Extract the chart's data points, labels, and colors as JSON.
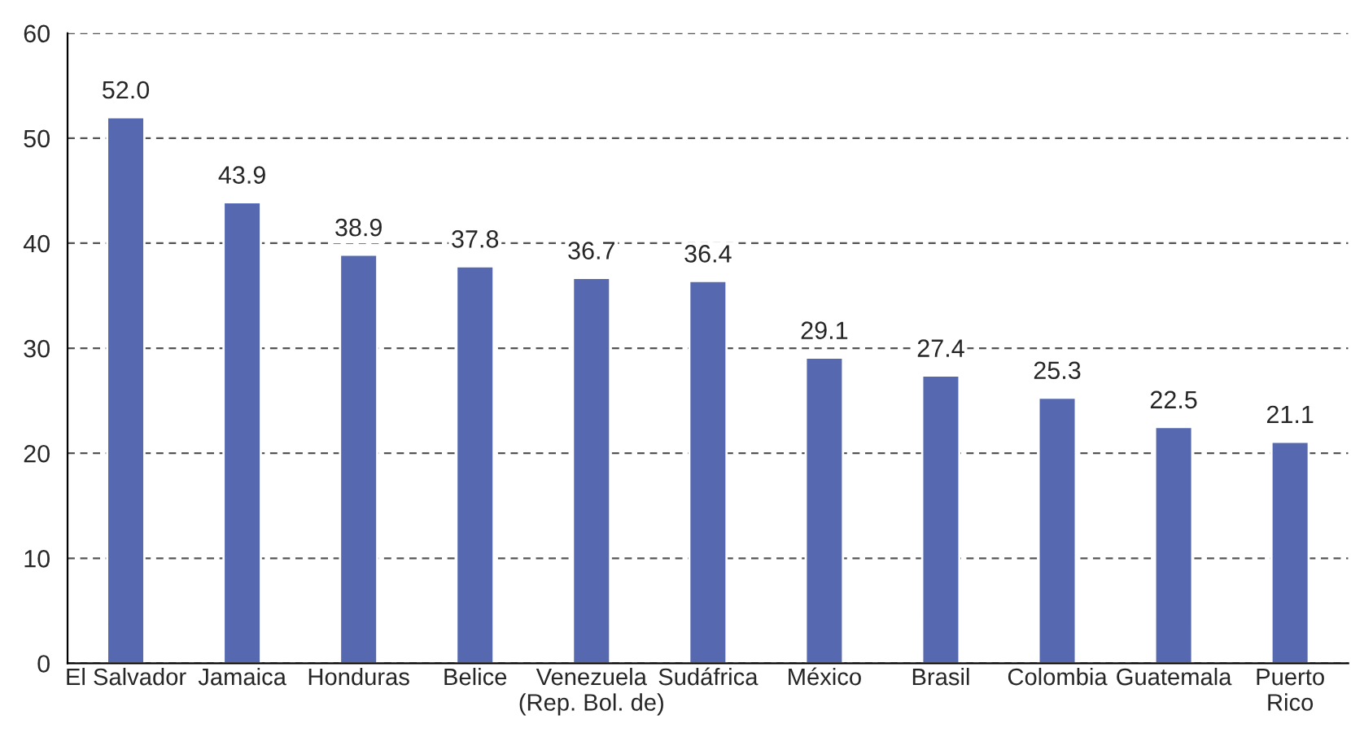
{
  "chart_data": {
    "type": "bar",
    "categories": [
      "El Salvador",
      "Jamaica",
      "Honduras",
      "Belice",
      "Venezuela\n(Rep. Bol. de)",
      "Sudáfrica",
      "México",
      "Brasil",
      "Colombia",
      "Guatemala",
      "Puerto\nRico"
    ],
    "values": [
      52.0,
      43.9,
      38.9,
      37.8,
      36.7,
      36.4,
      29.1,
      27.4,
      25.3,
      22.5,
      21.1
    ],
    "color": "#5568b0",
    "ylim": [
      0,
      60
    ],
    "yticks": [
      0,
      10,
      20,
      30,
      40,
      50,
      60
    ],
    "value_labels": [
      "52.0",
      "43.9",
      "38.9",
      "37.8",
      "36.7",
      "36.4",
      "29.1",
      "27.4",
      "25.3",
      "22.5",
      "21.1"
    ],
    "grid": "y",
    "legend": false
  }
}
